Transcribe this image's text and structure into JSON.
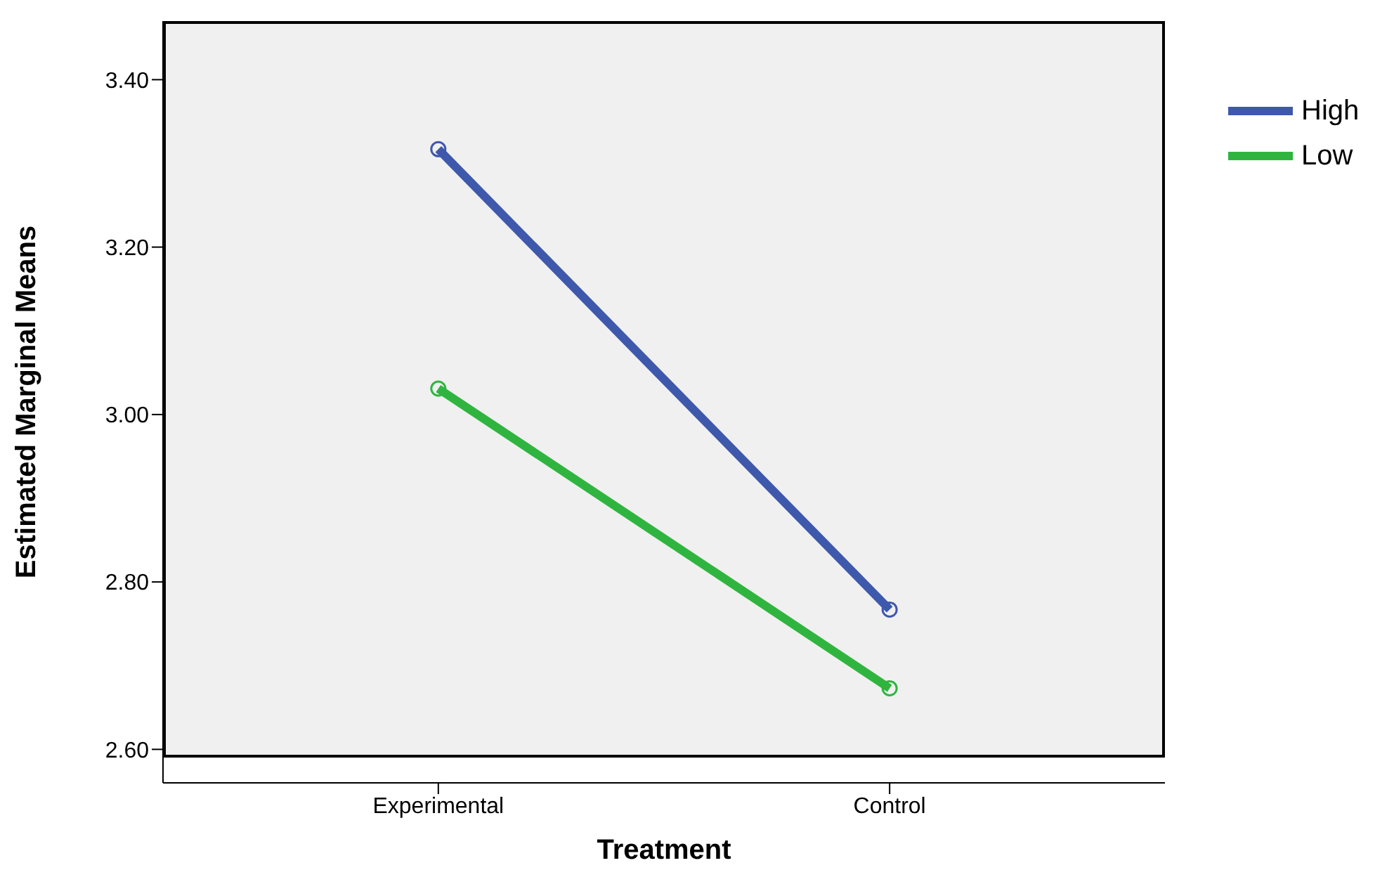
{
  "chart_data": {
    "type": "line",
    "xlabel": "Treatment",
    "ylabel": "Estimated Marginal Means",
    "categories": [
      "Experimental",
      "Control"
    ],
    "series": [
      {
        "name": "High",
        "color": "#3e58ac",
        "values": [
          3.317,
          2.767
        ]
      },
      {
        "name": "Low",
        "color": "#2fb53f",
        "values": [
          3.031,
          2.673
        ]
      }
    ],
    "ylim": [
      2.56,
      3.47
    ],
    "yticks": [
      {
        "value": 2.6,
        "label": "2.60"
      },
      {
        "value": 2.8,
        "label": "2.80"
      },
      {
        "value": 3.0,
        "label": "3.00"
      },
      {
        "value": 3.2,
        "label": "3.20"
      },
      {
        "value": 3.4,
        "label": "3.40"
      }
    ],
    "grid": false,
    "legend": "top right",
    "marker": "circle",
    "line_style": "solid"
  }
}
